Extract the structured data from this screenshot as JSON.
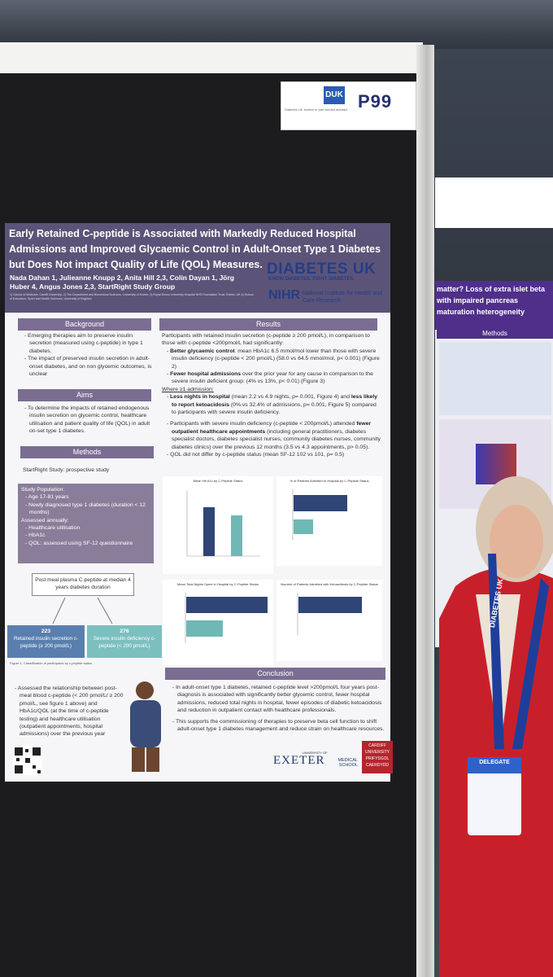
{
  "booth": {
    "poster_number": "P99",
    "duk_logo": "DUK",
    "duk_note": "Diabetes UK funded or part-funded abstract"
  },
  "poster": {
    "title": "Early Retained C-peptide is Associated with Markedly Reduced Hospital Admissions and Improved Glycaemic Control in Adult-Onset Type 1 Diabetes but Does Not impact Quality of Life (QOL) Measures.",
    "authors": "Nada Dahan 1, Julieanne Knupp 2, Anita Hill 2,3, Colin Dayan 1, Jörg Huber 4, Angus Jones 2,3, StartRight Study Group",
    "affiliations": "1) School of Medicine, Cardiff University; 2) The Department and Biomedical Sciences, University of Exeter; 3) Royal Devon University Hospital NHS Foundation Trust, Exeter, UK 4) School of Education, Sport and Health Sciences, University of Brighton",
    "logos": {
      "diabetes_uk": "DIABETES UK",
      "diabetes_uk_tag": "KNOW DIABETES. FIGHT DIABETES.",
      "nihr": "NIHR",
      "nihr_text": "National Institute for Health and Care Research",
      "exeter": "EXETER",
      "exeter_prefix": "UNIVERSITY OF",
      "exeter_school": "MEDICAL SCHOOL",
      "cardiff": "CARDIFF UNIVERSITY PRIFYSGOL CAERDYDD"
    },
    "background": {
      "heading": "Background",
      "bullets": [
        "Emerging therapies aim to preserve insulin secretion (measured using c-peptide) in type 1 diabetes.",
        "The impact of preserved insulin secretion in adult-onset diabetes, and on non glycemic outcomes, is unclear"
      ]
    },
    "aims": {
      "heading": "Aims",
      "text": "To determine the impacts of retained endogenous insulin secretion on glycemic control, healthcare utilisation and patient quality of life (QOL) in adult on-set type 1 diabetes."
    },
    "methods": {
      "heading": "Methods",
      "study": "StartRight Study: prospective study",
      "population_title": "Study Population:",
      "population": [
        "Age 17-81 years",
        "Newly diagnosed type 1 diabetes (duration < 12 months)"
      ],
      "assessed_title": "Assessed annually:",
      "assessed": [
        "Healthcare utilisation",
        "HbA1c",
        "QOL: assessed using SF-12 questionnaire"
      ],
      "flow_top": "Post meal plasma C-peptide at median 4 years diabetes duration",
      "flow_left_n": "223",
      "flow_left": "Retained insulin secretion c-peptide (≥ 200 pmol/L)",
      "flow_right_n": "276",
      "flow_right": "Severe insulin deficiency c-peptide (< 200 pmol/L)",
      "figure_caption": "Figure 1. Classification of participants by c-peptide status",
      "assessed_relationship": "Assessed the relationship between post-meal blood c-peptide (< 200 pmol/L/ ≥ 200 pmol/L, see figure 1 above) and HbA1c/QOL (at the time of c-peptide testing) and healthcare utilisation (outpatient appointments, hospital admissions) over the previous year"
    },
    "results": {
      "heading": "Results",
      "intro": "Participants with retained insulin secretion (c-peptide ≥ 200 pmol/L), in comparison to those with c-peptide <200pmol/L had significantly:",
      "item1_bold": "Better glycaemic control",
      "item1": ": mean HbA1c 6.5 mmol/mol lower than those with severe insulin deficiency (c-peptide < 200 pmol/L) (58.0 vs 64.5 mmol/mol, p< 0.001) (Figure 2)",
      "item2_bold": "Fewer hospital admissions",
      "item2": " over the prior year for any cause in comparison to the severe insulin deficient group: (4% vs 13%, p< 0.01) (Figure 3)",
      "where": "Where ≥1 admission:",
      "item3_bold": "Less nights in hospital",
      "item3": " (mean 2.2 vs 4.9 nights, p= 0.001, Figure 4) and ",
      "item3_bold2": "less likely to report ketoacidosis",
      "item3b": " (0% vs 32.4% of admissions, p= 0.001, Figure 5) compared to participants with severe insulin deficiency.",
      "item4": "Participants with severe insulin deficiency (c-peptide < 200pmol/L) attended ",
      "item4_bold": "fewer outpatient healthcare appointments",
      "item4b": " (including general practitioners, diabetes specialist doctors, diabetes specialist nurses, community diabetes nurses, community diabetes clinics) over the previous 12 months (3.5 vs 4.3 appointments, p> 0.05).",
      "item5": "QOL did not differ by c-peptide status (mean SF-12 102 vs 101, p= 0.5)",
      "fig2_title": "Mean Hb A1c by C-Peptide Status",
      "fig3_title": "% of Patients Admitted to Hospital by C-Peptide Status",
      "fig4_title": "Mean Total Nights Spent in Hospital by C-Peptide Status",
      "fig5_title": "Number of Patients Admitted with Ketoacidosis by C-Peptide Status"
    },
    "conclusion": {
      "heading": "Conclusion",
      "p1": "In adult-onset type 1 diabetes, retained c-peptide level >200pmol/L four years post-diagnosis is associated with significantly better glycemic control, fewer hospital admissions, reduced total nights in hospital, fewer episodes of diabetic ketoacidosis and reduction in outpatient contact with healthcare professionals.",
      "p2": "This supports the commissioning of therapies to preserve beta cell function to shift adult-onset type 1 diabetes management and reduce strain on healthcare resources."
    }
  },
  "neighbour_poster": {
    "title": "matter? Loss of extra islet beta with impaired pancreas maturation heterogeneity",
    "methods_heading": "Methods"
  },
  "badge": {
    "label": "DELEGATE",
    "lanyard": "DIABETES UK"
  },
  "colors": {
    "poster_purple": "#7b6d92",
    "title_band": "#5b5478",
    "diabetes_uk_blue": "#253d86",
    "blazer_red": "#c8202b"
  }
}
